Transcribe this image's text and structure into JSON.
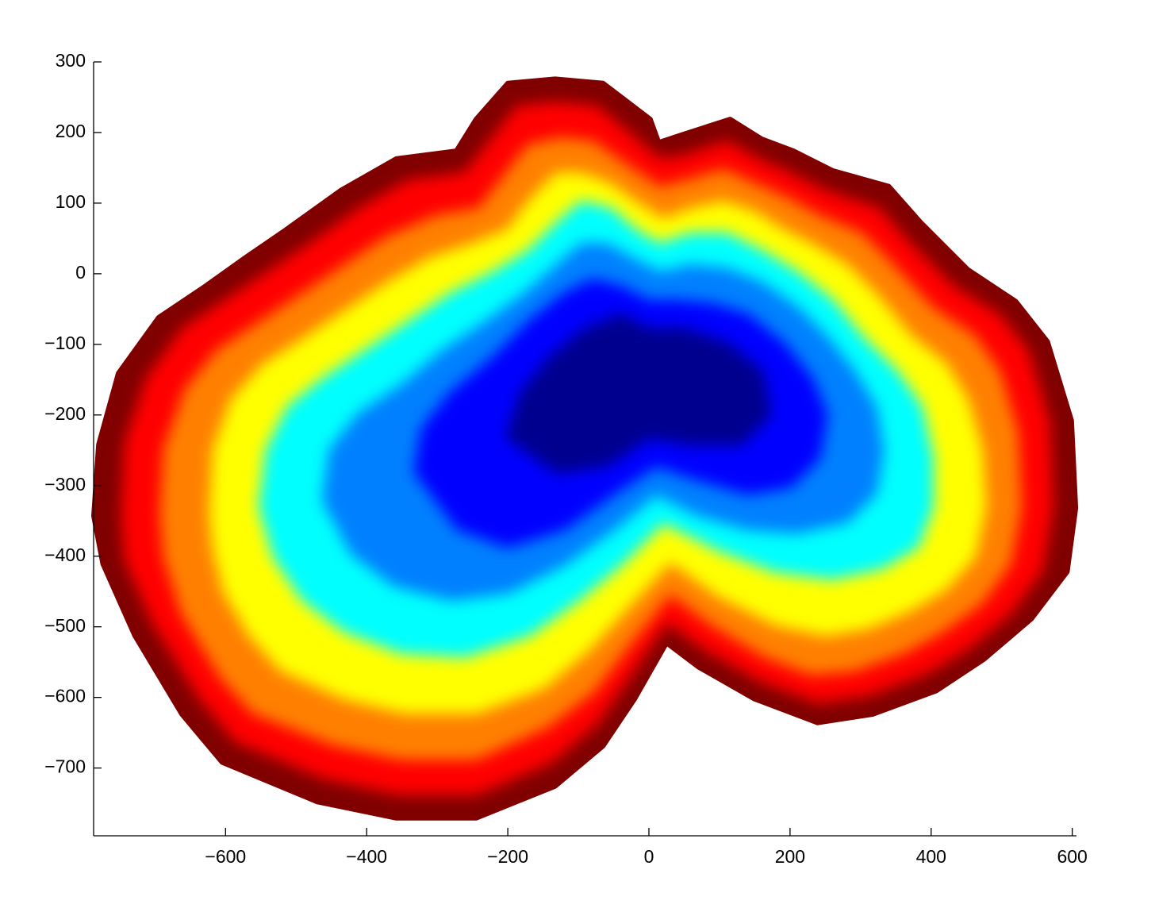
{
  "chart_data": {
    "type": "scatter",
    "xlim": [
      -787,
      606
    ],
    "ylim": [
      -796,
      300
    ],
    "xticks": [
      {
        "value": -600,
        "label": "−600"
      },
      {
        "value": -400,
        "label": "−400"
      },
      {
        "value": -200,
        "label": "−200"
      },
      0,
      200,
      400,
      600
    ],
    "yticks": [
      300,
      200,
      100,
      0,
      {
        "value": -100,
        "label": "−100"
      },
      {
        "value": -200,
        "label": "−200"
      },
      {
        "value": -300,
        "label": "−300"
      },
      {
        "value": -400,
        "label": "−400"
      },
      {
        "value": -500,
        "label": "−500"
      },
      {
        "value": -600,
        "label": "−600"
      },
      {
        "value": -700,
        "label": "−700"
      }
    ],
    "series": [
      {
        "color": "#800000",
        "x": [
          -787,
          -780,
          -752,
          -695,
          -628,
          -572,
          -515,
          -437,
          -358,
          -273,
          -245,
          -200,
          -133,
          -65,
          2,
          14,
          47,
          115,
          160,
          205,
          261,
          340,
          385,
          452,
          520,
          565,
          599,
          605,
          593,
          542,
          475,
          407,
          317,
          239,
          149,
          70,
          25,
          -20,
          -65,
          -133,
          -245,
          -358,
          -470,
          -605,
          -662,
          -729,
          -774
        ],
        "y": [
          -343,
          -242,
          -141,
          -62,
          -17,
          23,
          62,
          118,
          163,
          174,
          219,
          270,
          276,
          270,
          219,
          186,
          197,
          219,
          191,
          174,
          146,
          124,
          73,
          6,
          -39,
          -96,
          -208,
          -332,
          -422,
          -489,
          -546,
          -591,
          -624,
          -636,
          -602,
          -557,
          -523,
          -602,
          -669,
          -726,
          -771,
          -771,
          -748,
          -692,
          -624,
          -512,
          -411
        ]
      },
      {
        "color": "#ff0000",
        "x": [
          -745,
          -740,
          -710,
          -660,
          -600,
          -540,
          -480,
          -410,
          -340,
          -260,
          -225,
          -185,
          -130,
          -75,
          -20,
          15,
          50,
          110,
          155,
          200,
          250,
          325,
          365,
          430,
          495,
          535,
          565,
          570,
          555,
          510,
          450,
          390,
          310,
          240,
          160,
          80,
          25,
          -30,
          -75,
          -140,
          -245,
          -355,
          -460,
          -585,
          -635,
          -700,
          -740
        ],
        "y": [
          -343,
          -240,
          -150,
          -80,
          -40,
          0,
          40,
          90,
          130,
          140,
          185,
          235,
          240,
          235,
          190,
          160,
          165,
          185,
          160,
          140,
          115,
          90,
          45,
          -20,
          -60,
          -110,
          -210,
          -330,
          -420,
          -480,
          -530,
          -565,
          -595,
          -605,
          -575,
          -530,
          -490,
          -570,
          -635,
          -690,
          -735,
          -735,
          -712,
          -660,
          -600,
          -495,
          -405
        ]
      },
      {
        "color": "#ff8000",
        "x": [
          -690,
          -685,
          -655,
          -610,
          -550,
          -490,
          -430,
          -370,
          -300,
          -240,
          -205,
          -170,
          -125,
          -80,
          -30,
          15,
          55,
          105,
          150,
          195,
          240,
          300,
          340,
          400,
          460,
          495,
          520,
          525,
          510,
          470,
          415,
          360,
          290,
          230,
          165,
          90,
          30,
          -30,
          -80,
          -145,
          -245,
          -350,
          -445,
          -560,
          -605,
          -660,
          -685
        ],
        "y": [
          -340,
          -250,
          -165,
          -110,
          -70,
          -30,
          10,
          50,
          80,
          90,
          135,
          180,
          190,
          185,
          150,
          120,
          130,
          145,
          125,
          105,
          80,
          55,
          15,
          -50,
          -90,
          -140,
          -225,
          -330,
          -410,
          -465,
          -505,
          -535,
          -560,
          -565,
          -540,
          -495,
          -450,
          -525,
          -590,
          -640,
          -685,
          -685,
          -665,
          -620,
          -570,
          -480,
          -400
        ]
      },
      {
        "color": "#ffff00",
        "x": [
          -620,
          -615,
          -590,
          -545,
          -490,
          -430,
          -370,
          -310,
          -250,
          -200,
          -165,
          -130,
          -95,
          -55,
          -20,
          20,
          60,
          105,
          150,
          190,
          230,
          280,
          320,
          370,
          420,
          450,
          470,
          475,
          460,
          420,
          370,
          310,
          250,
          180,
          100,
          30,
          -30,
          -85,
          -150,
          -245,
          -345,
          -430,
          -520,
          -565,
          -600,
          -615
        ],
        "y": [
          -340,
          -250,
          -180,
          -130,
          -95,
          -55,
          -15,
          20,
          40,
          60,
          105,
          140,
          140,
          125,
          100,
          75,
          90,
          100,
          85,
          60,
          40,
          10,
          -30,
          -90,
          -130,
          -180,
          -250,
          -330,
          -400,
          -445,
          -475,
          -500,
          -510,
          -495,
          -455,
          -405,
          -470,
          -530,
          -585,
          -620,
          -620,
          -600,
          -560,
          -510,
          -450,
          -390
        ]
      },
      {
        "color": "#00ffff",
        "x": [
          -550,
          -540,
          -510,
          -460,
          -400,
          -340,
          -280,
          -220,
          -170,
          -130,
          -95,
          -55,
          -20,
          15,
          60,
          110,
          160,
          210,
          260,
          300,
          350,
          385,
          400,
          400,
          380,
          330,
          260,
          180,
          100,
          20,
          -40,
          -100,
          -170,
          -260,
          -350,
          -430,
          -490,
          -530
        ],
        "y": [
          -330,
          -250,
          -190,
          -150,
          -110,
          -70,
          -30,
          0,
          30,
          70,
          100,
          90,
          60,
          40,
          55,
          55,
          30,
          0,
          -40,
          -90,
          -140,
          -190,
          -260,
          -330,
          -385,
          -415,
          -430,
          -420,
          -390,
          -350,
          -410,
          -460,
          -510,
          -540,
          -535,
          -505,
          -460,
          -400
        ]
      },
      {
        "color": "#0080ff",
        "x": [
          -460,
          -450,
          -410,
          -350,
          -290,
          -230,
          -175,
          -130,
          -95,
          -60,
          -25,
          15,
          60,
          110,
          160,
          210,
          250,
          290,
          320,
          330,
          320,
          280,
          210,
          140,
          70,
          10,
          -50,
          -120,
          -200,
          -280,
          -360,
          -420
        ],
        "y": [
          -320,
          -250,
          -200,
          -160,
          -110,
          -70,
          -30,
          10,
          40,
          40,
          20,
          0,
          10,
          5,
          -15,
          -50,
          -90,
          -140,
          -190,
          -250,
          -310,
          -350,
          -365,
          -360,
          -340,
          -310,
          -360,
          -410,
          -450,
          -460,
          -440,
          -395
        ]
      },
      {
        "color": "#0000ff",
        "x": [
          -330,
          -320,
          -280,
          -220,
          -170,
          -120,
          -80,
          -40,
          0,
          40,
          90,
          140,
          190,
          230,
          250,
          240,
          200,
          140,
          70,
          10,
          -50,
          -120,
          -200,
          -270
        ],
        "y": [
          -280,
          -220,
          -170,
          -120,
          -70,
          -30,
          -10,
          -20,
          -40,
          -40,
          -45,
          -60,
          -100,
          -150,
          -200,
          -260,
          -300,
          -310,
          -290,
          -270,
          -310,
          -360,
          -385,
          -360
        ]
      },
      {
        "color": "#00008f",
        "x": [
          -200,
          -180,
          -140,
          -90,
          -40,
          0,
          50,
          110,
          160,
          170,
          130,
          60,
          0,
          -60,
          -130
        ],
        "y": [
          -230,
          -170,
          -120,
          -80,
          -60,
          -80,
          -80,
          -100,
          -140,
          -200,
          -240,
          -240,
          -230,
          -270,
          -280
        ]
      }
    ]
  }
}
